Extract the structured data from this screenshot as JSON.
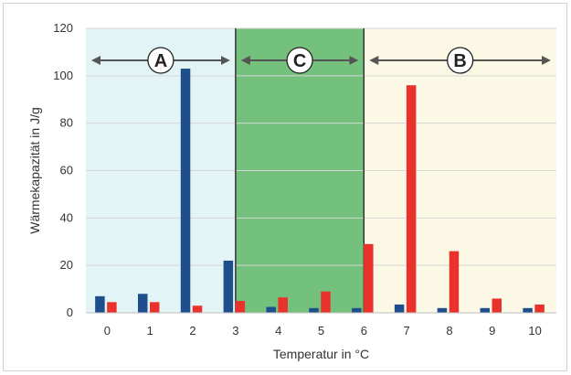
{
  "chart_data": {
    "type": "bar",
    "title": "",
    "xlabel": "Temperatur in °C",
    "ylabel": "Wärmekapazität in J/g",
    "x_ticks": [
      "0",
      "1",
      "2",
      "3",
      "4",
      "5",
      "6",
      "7",
      "8",
      "9",
      "10"
    ],
    "ylim": [
      0,
      120
    ],
    "y_ticks": [
      "0",
      "20",
      "40",
      "60",
      "80",
      "100",
      "120"
    ],
    "grid": true,
    "series": [
      {
        "color": "#1f4e8c",
        "points": [
          {
            "x": 0,
            "y": 7
          },
          {
            "x": 1,
            "y": 8
          },
          {
            "x": 2,
            "y": 103
          },
          {
            "x": 3,
            "y": 22
          },
          {
            "x": 4,
            "y": 2.5
          },
          {
            "x": 5,
            "y": 2
          },
          {
            "x": 6,
            "y": 2
          },
          {
            "x": 7,
            "y": 3.5
          },
          {
            "x": 8,
            "y": 2
          },
          {
            "x": 9,
            "y": 2
          },
          {
            "x": 10,
            "y": 2
          }
        ]
      },
      {
        "color": "#e8322b",
        "points": [
          {
            "x": 0,
            "y": 4.5
          },
          {
            "x": 1,
            "y": 4.5
          },
          {
            "x": 2,
            "y": 3
          },
          {
            "x": 3,
            "y": 5
          },
          {
            "x": 4,
            "y": 6.5
          },
          {
            "x": 5,
            "y": 9
          },
          {
            "x": 6,
            "y": 29
          },
          {
            "x": 7,
            "y": 96
          },
          {
            "x": 8,
            "y": 26
          },
          {
            "x": 9,
            "y": 6
          },
          {
            "x": 10,
            "y": 3.5
          }
        ]
      }
    ],
    "regions": [
      {
        "label": "A",
        "x_from": -0.5,
        "x_to": 3,
        "color": "#e3f4f7"
      },
      {
        "label": "C",
        "x_from": 3,
        "x_to": 6,
        "color": "#74c17d"
      },
      {
        "label": "B",
        "x_from": 6,
        "x_to": 10.5,
        "color": "#fbf8e6"
      }
    ],
    "arrow_color": "#555555"
  }
}
